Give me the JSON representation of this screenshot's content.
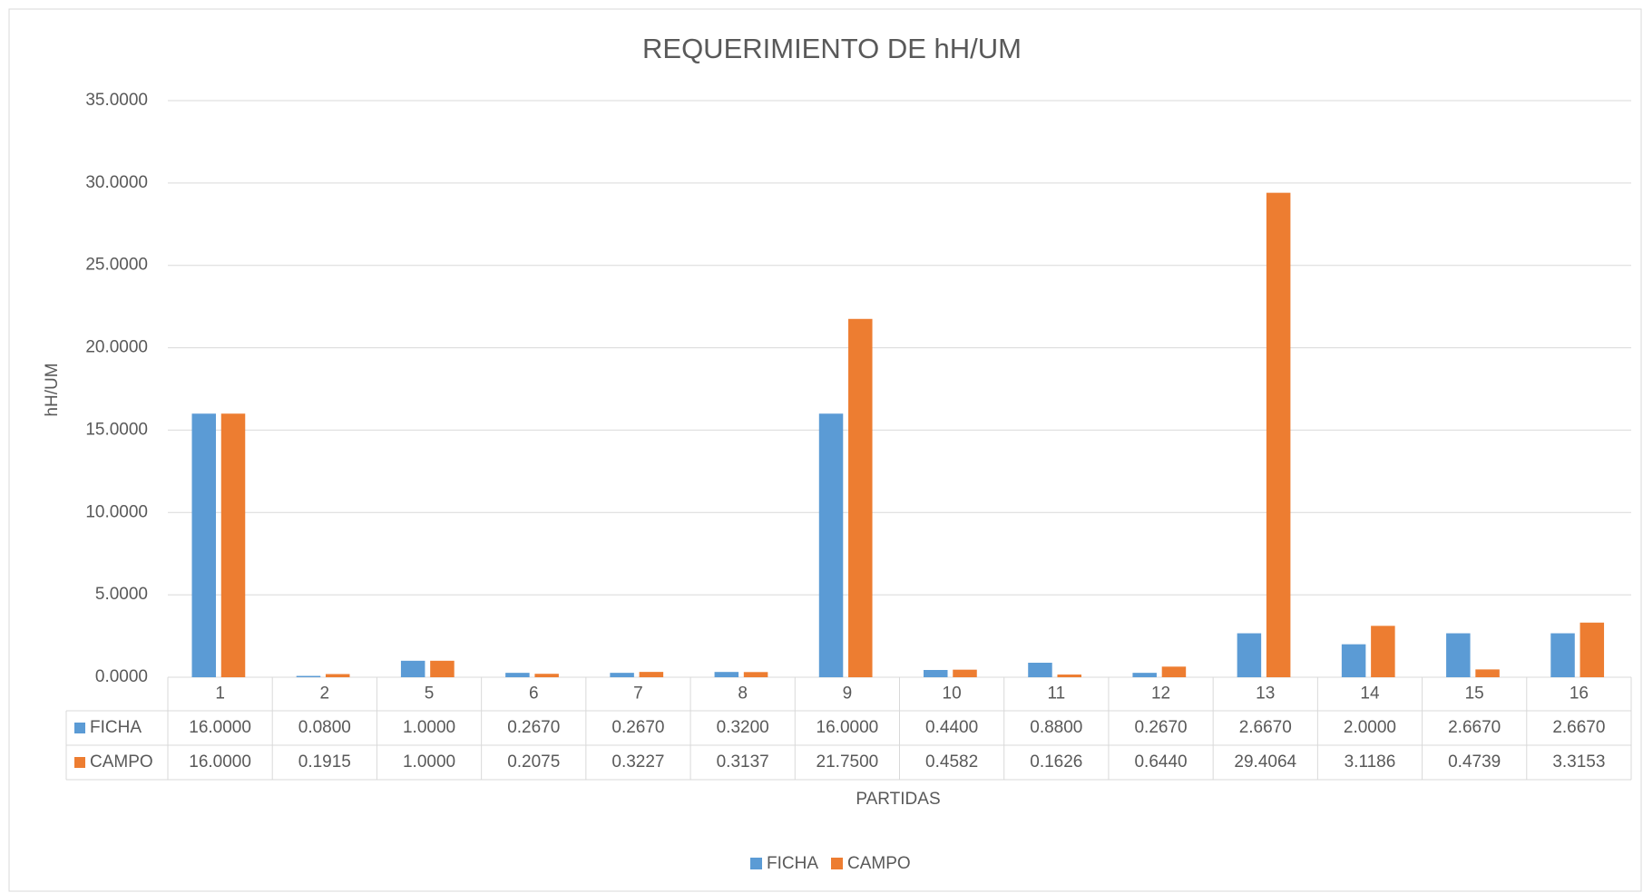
{
  "chart_data": {
    "type": "bar",
    "title": "REQUERIMIENTO DE hH/UM",
    "x_label": "PARTIDAS",
    "y_label": "hH/UM",
    "categories": [
      "1",
      "2",
      "5",
      "6",
      "7",
      "8",
      "9",
      "10",
      "11",
      "12",
      "13",
      "14",
      "15",
      "16"
    ],
    "series": [
      {
        "name": "FICHA",
        "color": "#5b9bd5",
        "values": [
          16,
          0.08,
          1,
          0.267,
          0.267,
          0.32,
          16,
          0.44,
          0.88,
          0.267,
          2.667,
          2,
          2.667,
          2.667
        ],
        "value_labels": [
          "16.0000",
          "0.0800",
          "1.0000",
          "0.2670",
          "0.2670",
          "0.3200",
          "16.0000",
          "0.4400",
          "0.8800",
          "0.2670",
          "2.6670",
          "2.0000",
          "2.6670",
          "2.6670"
        ]
      },
      {
        "name": "CAMPO",
        "color": "#ed7d31",
        "values": [
          16,
          0.1915,
          1,
          0.2075,
          0.3227,
          0.3137,
          21.75,
          0.4582,
          0.1626,
          0.644,
          29.4064,
          3.1186,
          0.4739,
          3.3153
        ],
        "value_labels": [
          "16.0000",
          "0.1915",
          "1.0000",
          "0.2075",
          "0.3227",
          "0.3137",
          "21.7500",
          "0.4582",
          "0.1626",
          "0.6440",
          "29.4064",
          "3.1186",
          "0.4739",
          "3.3153"
        ]
      }
    ],
    "ylim": [
      0,
      35
    ],
    "yticks": [
      {
        "value": 0,
        "label": "0.0000"
      },
      {
        "value": 5,
        "label": "5.0000"
      },
      {
        "value": 10,
        "label": "10.0000"
      },
      {
        "value": 15,
        "label": "15.0000"
      },
      {
        "value": 20,
        "label": "20.0000"
      },
      {
        "value": 25,
        "label": "25.0000"
      },
      {
        "value": 30,
        "label": "30.0000"
      },
      {
        "value": 35,
        "label": "35.0000"
      }
    ],
    "grid": true,
    "legend": "bottom"
  }
}
